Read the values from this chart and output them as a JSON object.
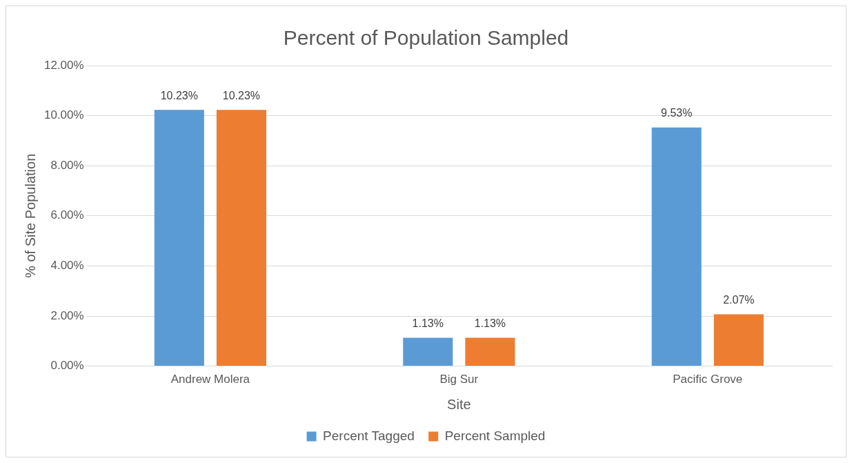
{
  "chart_data": {
    "type": "bar",
    "title": "Percent of Population Sampled",
    "xlabel": "Site",
    "ylabel": "% of Site Population",
    "categories": [
      "Andrew Molera",
      "Big Sur",
      "Pacific Grove"
    ],
    "series": [
      {
        "name": "Percent Tagged",
        "color": "#5b9bd5",
        "values": [
          10.23,
          1.13,
          9.53
        ],
        "value_labels": [
          "10.23%",
          "1.13%",
          "9.53%"
        ]
      },
      {
        "name": "Percent Sampled",
        "color": "#ed7d31",
        "values": [
          10.23,
          1.13,
          2.07
        ],
        "value_labels": [
          "10.23%",
          "1.13%",
          "2.07%"
        ]
      }
    ],
    "ylim": [
      0,
      12
    ],
    "yticks": [
      {
        "value": 0,
        "label": "0.00%"
      },
      {
        "value": 2,
        "label": "2.00%"
      },
      {
        "value": 4,
        "label": "4.00%"
      },
      {
        "value": 6,
        "label": "6.00%"
      },
      {
        "value": 8,
        "label": "8.00%"
      },
      {
        "value": 10,
        "label": "10.00%"
      },
      {
        "value": 12,
        "label": "12.00%"
      }
    ],
    "grid": "y",
    "legend": "bottom"
  }
}
